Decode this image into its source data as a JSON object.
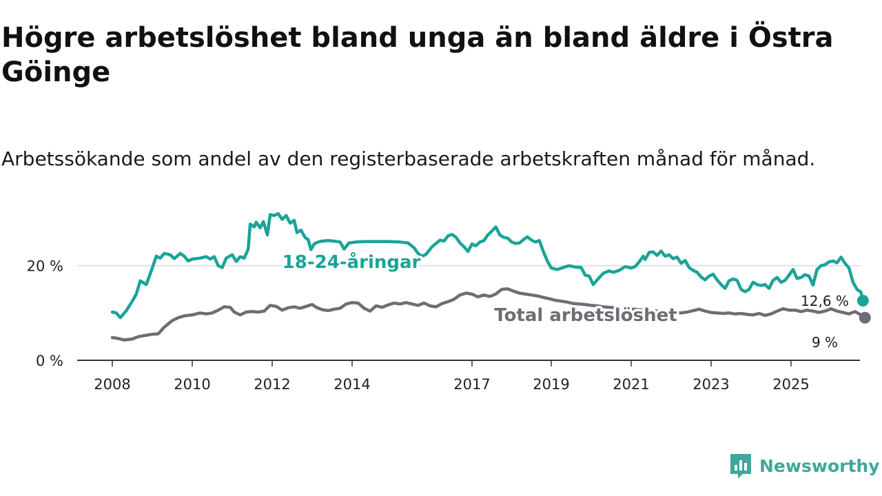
{
  "title": "Högre arbetslöshet bland unga än bland äldre i Östra Göinge",
  "subtitle": "Arbetssökande som andel av den registerbaserade arbetskraften månad för månad.",
  "brand": {
    "name": "Newsworthy",
    "icon": "newsworthy-logo-icon"
  },
  "colors": {
    "youth": "#1aa497",
    "total": "#6e6d74",
    "grid": "#d9d9d9",
    "axis": "#333333"
  },
  "chart_data": {
    "type": "line",
    "title": "Högre arbetslöshet bland unga än bland äldre i Östra Göinge",
    "xlabel": "",
    "ylabel": "",
    "xlim": [
      2007.8,
      2027.5
    ],
    "ylim": [
      0,
      30
    ],
    "y_ticks": [
      0,
      20
    ],
    "y_tick_labels": [
      "0 %",
      "20 %"
    ],
    "x_ticks": [
      2008,
      2010,
      2012,
      2014,
      2017,
      2019,
      2021,
      2023,
      2025
    ],
    "x_tick_labels": [
      "2008",
      "2010",
      "2012",
      "2014",
      "2017",
      "2019",
      "2021",
      "2023",
      "2025"
    ],
    "grid": true,
    "series": [
      {
        "name": "18-24-åringar",
        "label": "18-24-åringar",
        "end_label": "12,6 %",
        "end_value": 12.6,
        "end_x": 2025.8,
        "points": [
          [
            2008.0,
            10.2
          ],
          [
            2008.1,
            10.0
          ],
          [
            2008.2,
            9.0
          ],
          [
            2008.35,
            10.5
          ],
          [
            2008.5,
            12.5
          ],
          [
            2008.6,
            14.0
          ],
          [
            2008.7,
            16.8
          ],
          [
            2008.85,
            16.0
          ],
          [
            2009.0,
            19.5
          ],
          [
            2009.1,
            22.0
          ],
          [
            2009.2,
            21.6
          ],
          [
            2009.3,
            22.6
          ],
          [
            2009.45,
            22.3
          ],
          [
            2009.55,
            21.5
          ],
          [
            2009.7,
            22.6
          ],
          [
            2009.8,
            22.0
          ],
          [
            2009.9,
            21.0
          ],
          [
            2010.0,
            21.4
          ],
          [
            2010.2,
            21.6
          ],
          [
            2010.35,
            21.9
          ],
          [
            2010.45,
            21.4
          ],
          [
            2010.55,
            21.9
          ],
          [
            2010.65,
            20.0
          ],
          [
            2010.75,
            19.6
          ],
          [
            2010.85,
            21.6
          ],
          [
            2011.0,
            22.3
          ],
          [
            2011.1,
            20.9
          ],
          [
            2011.2,
            21.9
          ],
          [
            2011.3,
            21.6
          ],
          [
            2011.4,
            23.5
          ],
          [
            2011.45,
            28.8
          ],
          [
            2011.55,
            28.2
          ],
          [
            2011.6,
            29.2
          ],
          [
            2011.7,
            28.0
          ],
          [
            2011.78,
            29.3
          ],
          [
            2011.88,
            26.5
          ],
          [
            2011.95,
            30.8
          ],
          [
            2012.05,
            30.6
          ],
          [
            2012.15,
            31.0
          ],
          [
            2012.25,
            29.8
          ],
          [
            2012.35,
            30.6
          ],
          [
            2012.45,
            29.0
          ],
          [
            2012.55,
            29.6
          ],
          [
            2012.62,
            27.0
          ],
          [
            2012.72,
            27.5
          ],
          [
            2012.82,
            26.0
          ],
          [
            2012.9,
            25.5
          ],
          [
            2012.97,
            23.4
          ],
          [
            2013.05,
            24.6
          ],
          [
            2013.15,
            25.0
          ],
          [
            2013.25,
            25.2
          ],
          [
            2013.4,
            25.3
          ],
          [
            2013.55,
            25.2
          ],
          [
            2013.7,
            25.0
          ],
          [
            2013.8,
            23.5
          ],
          [
            2013.92,
            24.8
          ],
          [
            2014.1,
            25.0
          ],
          [
            2014.3,
            25.1
          ],
          [
            2014.6,
            25.1
          ],
          [
            2014.9,
            25.1
          ],
          [
            2015.2,
            25.0
          ],
          [
            2015.4,
            24.8
          ],
          [
            2015.55,
            23.8
          ],
          [
            2015.65,
            22.6
          ],
          [
            2015.75,
            22.0
          ],
          [
            2015.85,
            22.4
          ],
          [
            2016.0,
            24.0
          ],
          [
            2016.1,
            24.7
          ],
          [
            2016.2,
            25.4
          ],
          [
            2016.3,
            25.2
          ],
          [
            2016.4,
            26.3
          ],
          [
            2016.5,
            26.6
          ],
          [
            2016.6,
            26.0
          ],
          [
            2016.7,
            24.8
          ],
          [
            2016.8,
            24.0
          ],
          [
            2016.9,
            23.0
          ],
          [
            2017.0,
            24.6
          ],
          [
            2017.1,
            24.2
          ],
          [
            2017.2,
            25.0
          ],
          [
            2017.3,
            25.3
          ],
          [
            2017.4,
            26.5
          ],
          [
            2017.5,
            27.3
          ],
          [
            2017.6,
            28.2
          ],
          [
            2017.7,
            26.5
          ],
          [
            2017.8,
            26.0
          ],
          [
            2017.9,
            25.8
          ],
          [
            2018.0,
            25.0
          ],
          [
            2018.1,
            24.7
          ],
          [
            2018.2,
            24.8
          ],
          [
            2018.3,
            25.5
          ],
          [
            2018.4,
            26.1
          ],
          [
            2018.5,
            25.4
          ],
          [
            2018.6,
            25.0
          ],
          [
            2018.7,
            25.3
          ],
          [
            2018.8,
            23.0
          ],
          [
            2018.9,
            21.0
          ],
          [
            2019.0,
            19.5
          ],
          [
            2019.15,
            19.2
          ],
          [
            2019.3,
            19.6
          ],
          [
            2019.45,
            20.0
          ],
          [
            2019.6,
            19.7
          ],
          [
            2019.75,
            19.6
          ],
          [
            2019.85,
            18.0
          ],
          [
            2019.95,
            17.8
          ],
          [
            2020.05,
            16.0
          ],
          [
            2020.15,
            17.0
          ],
          [
            2020.3,
            18.4
          ],
          [
            2020.45,
            18.9
          ],
          [
            2020.55,
            18.6
          ],
          [
            2020.7,
            19.0
          ],
          [
            2020.85,
            19.8
          ],
          [
            2021.0,
            19.5
          ],
          [
            2021.1,
            19.8
          ],
          [
            2021.2,
            20.8
          ],
          [
            2021.3,
            22.0
          ],
          [
            2021.35,
            21.3
          ],
          [
            2021.45,
            22.8
          ],
          [
            2021.55,
            22.9
          ],
          [
            2021.65,
            22.2
          ],
          [
            2021.75,
            23.1
          ],
          [
            2021.85,
            22.0
          ],
          [
            2021.95,
            22.3
          ],
          [
            2022.05,
            21.5
          ],
          [
            2022.15,
            21.8
          ],
          [
            2022.25,
            20.5
          ],
          [
            2022.35,
            21.1
          ],
          [
            2022.45,
            19.6
          ],
          [
            2022.55,
            19.0
          ],
          [
            2022.65,
            18.6
          ],
          [
            2022.75,
            17.6
          ],
          [
            2022.85,
            17.0
          ],
          [
            2022.95,
            17.8
          ],
          [
            2023.05,
            18.2
          ],
          [
            2023.15,
            17.0
          ],
          [
            2023.25,
            16.0
          ],
          [
            2023.35,
            15.2
          ],
          [
            2023.45,
            16.8
          ],
          [
            2023.55,
            17.2
          ],
          [
            2023.65,
            16.9
          ],
          [
            2023.75,
            15.0
          ],
          [
            2023.85,
            14.5
          ],
          [
            2023.95,
            15.0
          ],
          [
            2024.05,
            16.5
          ],
          [
            2024.15,
            16.0
          ],
          [
            2024.25,
            15.8
          ],
          [
            2024.35,
            16.0
          ],
          [
            2024.45,
            15.2
          ],
          [
            2024.55,
            16.9
          ],
          [
            2024.65,
            17.5
          ],
          [
            2024.75,
            16.5
          ],
          [
            2024.85,
            16.9
          ],
          [
            2024.95,
            18.0
          ],
          [
            2025.05,
            19.2
          ],
          [
            2025.15,
            17.3
          ],
          [
            2025.25,
            17.5
          ],
          [
            2025.35,
            18.1
          ],
          [
            2025.45,
            17.8
          ],
          [
            2025.55,
            15.9
          ],
          [
            2025.65,
            19.2
          ],
          [
            2025.75,
            20.0
          ],
          [
            2025.85,
            20.2
          ],
          [
            2025.95,
            20.8
          ],
          [
            2026.05,
            21.0
          ],
          [
            2026.15,
            20.6
          ],
          [
            2026.25,
            21.8
          ],
          [
            2026.35,
            20.5
          ],
          [
            2026.45,
            19.5
          ],
          [
            2026.55,
            16.5
          ],
          [
            2026.65,
            15.0
          ],
          [
            2026.75,
            14.4
          ],
          [
            2026.8,
            12.6
          ]
        ]
      },
      {
        "name": "Total arbetslöshet",
        "label": "Total arbetslöshet",
        "end_label": "9 %",
        "end_value": 9.0,
        "end_x": 2025.8,
        "points": [
          [
            2008.0,
            4.8
          ],
          [
            2008.15,
            4.6
          ],
          [
            2008.3,
            4.3
          ],
          [
            2008.5,
            4.5
          ],
          [
            2008.65,
            5.0
          ],
          [
            2008.85,
            5.3
          ],
          [
            2009.0,
            5.5
          ],
          [
            2009.15,
            5.6
          ],
          [
            2009.3,
            7.0
          ],
          [
            2009.5,
            8.4
          ],
          [
            2009.65,
            9.0
          ],
          [
            2009.8,
            9.4
          ],
          [
            2010.0,
            9.6
          ],
          [
            2010.2,
            10.0
          ],
          [
            2010.35,
            9.8
          ],
          [
            2010.5,
            10.0
          ],
          [
            2010.65,
            10.6
          ],
          [
            2010.8,
            11.3
          ],
          [
            2010.95,
            11.2
          ],
          [
            2011.05,
            10.2
          ],
          [
            2011.2,
            9.6
          ],
          [
            2011.35,
            10.2
          ],
          [
            2011.5,
            10.3
          ],
          [
            2011.65,
            10.2
          ],
          [
            2011.8,
            10.4
          ],
          [
            2011.95,
            11.6
          ],
          [
            2012.1,
            11.4
          ],
          [
            2012.25,
            10.6
          ],
          [
            2012.4,
            11.1
          ],
          [
            2012.55,
            11.3
          ],
          [
            2012.7,
            11.0
          ],
          [
            2012.85,
            11.4
          ],
          [
            2013.0,
            11.8
          ],
          [
            2013.1,
            11.2
          ],
          [
            2013.25,
            10.7
          ],
          [
            2013.4,
            10.5
          ],
          [
            2013.55,
            10.8
          ],
          [
            2013.7,
            11.0
          ],
          [
            2013.85,
            11.9
          ],
          [
            2014.0,
            12.2
          ],
          [
            2014.15,
            12.1
          ],
          [
            2014.3,
            11.0
          ],
          [
            2014.45,
            10.4
          ],
          [
            2014.6,
            11.5
          ],
          [
            2014.75,
            11.2
          ],
          [
            2014.9,
            11.7
          ],
          [
            2015.05,
            12.1
          ],
          [
            2015.2,
            11.9
          ],
          [
            2015.35,
            12.2
          ],
          [
            2015.5,
            11.9
          ],
          [
            2015.65,
            11.6
          ],
          [
            2015.8,
            12.1
          ],
          [
            2015.95,
            11.5
          ],
          [
            2016.1,
            11.3
          ],
          [
            2016.25,
            12.0
          ],
          [
            2016.4,
            12.4
          ],
          [
            2016.55,
            12.9
          ],
          [
            2016.7,
            13.8
          ],
          [
            2016.85,
            14.2
          ],
          [
            2017.0,
            14.0
          ],
          [
            2017.15,
            13.4
          ],
          [
            2017.3,
            13.8
          ],
          [
            2017.45,
            13.5
          ],
          [
            2017.6,
            14.0
          ],
          [
            2017.75,
            15.0
          ],
          [
            2017.9,
            15.1
          ],
          [
            2018.05,
            14.6
          ],
          [
            2018.2,
            14.2
          ],
          [
            2018.35,
            14.0
          ],
          [
            2018.5,
            13.8
          ],
          [
            2018.65,
            13.6
          ],
          [
            2018.8,
            13.3
          ],
          [
            2018.95,
            13.0
          ],
          [
            2019.1,
            12.7
          ],
          [
            2019.25,
            12.5
          ],
          [
            2019.4,
            12.3
          ],
          [
            2019.55,
            12.0
          ],
          [
            2019.7,
            11.9
          ],
          [
            2019.85,
            11.8
          ],
          [
            2020.0,
            11.6
          ],
          [
            2020.15,
            11.5
          ],
          [
            2020.3,
            11.3
          ],
          [
            2020.45,
            11.2
          ],
          [
            2020.6,
            11.1
          ],
          [
            2020.75,
            11.0
          ],
          [
            2020.9,
            10.9
          ],
          [
            2021.05,
            10.8
          ],
          [
            2021.2,
            10.7
          ],
          [
            2021.35,
            10.6
          ],
          [
            2021.5,
            10.5
          ],
          [
            2021.65,
            10.4
          ],
          [
            2021.8,
            10.3
          ],
          [
            2021.95,
            10.2
          ],
          [
            2022.1,
            10.1
          ],
          [
            2022.25,
            10.0
          ],
          [
            2022.4,
            10.2
          ],
          [
            2022.55,
            10.5
          ],
          [
            2022.7,
            10.8
          ],
          [
            2022.85,
            10.4
          ],
          [
            2023.0,
            10.1
          ],
          [
            2023.15,
            10.0
          ],
          [
            2023.3,
            9.9
          ],
          [
            2023.45,
            10.0
          ],
          [
            2023.6,
            9.8
          ],
          [
            2023.75,
            9.9
          ],
          [
            2023.9,
            9.7
          ],
          [
            2024.05,
            9.6
          ],
          [
            2024.2,
            9.9
          ],
          [
            2024.35,
            9.5
          ],
          [
            2024.5,
            9.8
          ],
          [
            2024.65,
            10.4
          ],
          [
            2024.8,
            10.9
          ],
          [
            2024.95,
            10.6
          ],
          [
            2025.1,
            10.6
          ],
          [
            2025.25,
            10.3
          ],
          [
            2025.4,
            10.6
          ],
          [
            2025.55,
            10.4
          ],
          [
            2025.7,
            10.1
          ],
          [
            2025.85,
            10.4
          ],
          [
            2026.0,
            10.9
          ],
          [
            2026.15,
            10.4
          ],
          [
            2026.3,
            10.1
          ],
          [
            2026.45,
            9.8
          ],
          [
            2026.6,
            10.3
          ],
          [
            2026.75,
            9.6
          ],
          [
            2026.85,
            9.0
          ]
        ]
      }
    ]
  }
}
